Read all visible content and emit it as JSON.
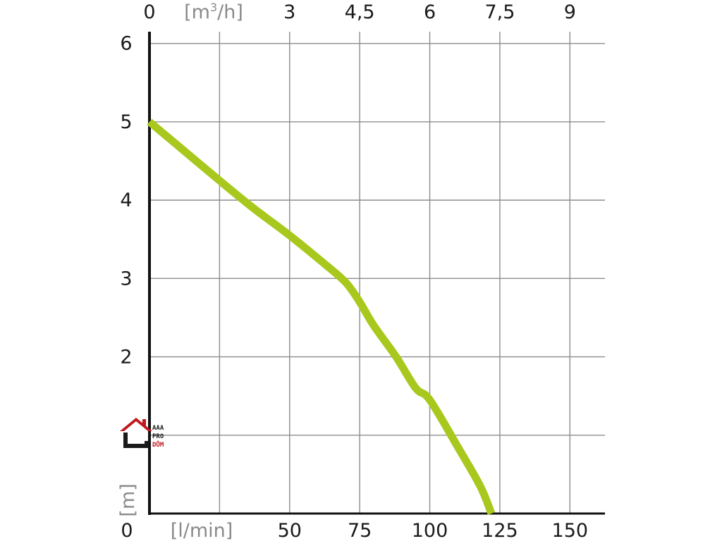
{
  "chart_data": {
    "type": "line",
    "x_bottom": {
      "unit_label": "[l/min]",
      "ticks": [
        "0",
        "50",
        "75",
        "100",
        "125",
        "150"
      ],
      "range": [
        0,
        162.5
      ]
    },
    "x_top": {
      "unit_label": "[m³/h]",
      "ticks": [
        "0",
        "3",
        "4,5",
        "6",
        "7,5",
        "9"
      ],
      "range": [
        0,
        9.75
      ]
    },
    "y": {
      "unit_label": "[m]",
      "ticks": [
        "2",
        "3",
        "4",
        "5",
        "6"
      ],
      "range": [
        0,
        6.15
      ]
    },
    "grid": true,
    "series": [
      {
        "color": "#a8c81e",
        "points": [
          {
            "x": 0,
            "y": 5.0
          },
          {
            "x": 10,
            "y": 4.7
          },
          {
            "x": 25,
            "y": 4.25
          },
          {
            "x": 37,
            "y": 3.9
          },
          {
            "x": 50,
            "y": 3.55
          },
          {
            "x": 62,
            "y": 3.2
          },
          {
            "x": 70,
            "y": 2.95
          },
          {
            "x": 75,
            "y": 2.7
          },
          {
            "x": 80,
            "y": 2.4
          },
          {
            "x": 88,
            "y": 2.0
          },
          {
            "x": 95,
            "y": 1.6
          },
          {
            "x": 100,
            "y": 1.45
          },
          {
            "x": 110,
            "y": 0.85
          },
          {
            "x": 118,
            "y": 0.35
          },
          {
            "x": 122,
            "y": 0.0
          }
        ]
      }
    ]
  },
  "logo": {
    "lines": [
      "AAA",
      "PRO",
      "DŮM"
    ],
    "red": "#c0181f",
    "dark": "#1a1a1a"
  }
}
